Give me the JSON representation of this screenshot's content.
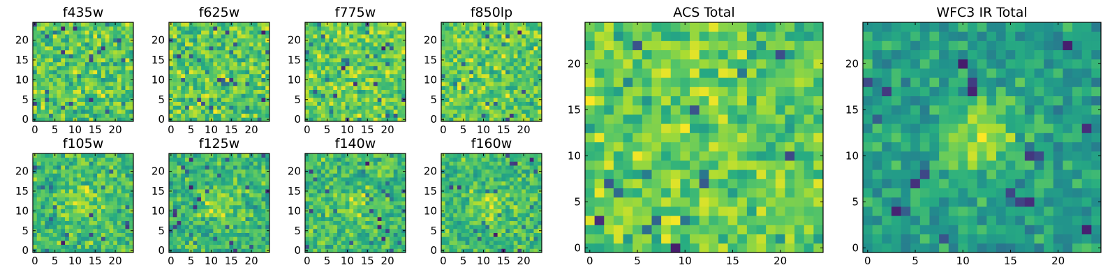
{
  "figure": {
    "title": "",
    "colormap": "viridis",
    "colors": {
      "background": "#ffffff",
      "axis": "#000000"
    }
  },
  "chart_data": [
    {
      "id": "f435w",
      "type": "heatmap",
      "title": "f435w",
      "grid_size": 25,
      "xlim": [
        0,
        24
      ],
      "ylim": [
        0,
        24
      ],
      "xticks": [
        0,
        5,
        10,
        15,
        20
      ],
      "yticks": [
        0,
        5,
        10,
        15,
        20
      ],
      "xlabel": "",
      "ylabel": "",
      "central_source_strength": 0.0,
      "noise_seed": 11
    },
    {
      "id": "f625w",
      "type": "heatmap",
      "title": "f625w",
      "grid_size": 25,
      "xlim": [
        0,
        24
      ],
      "ylim": [
        0,
        24
      ],
      "xticks": [
        0,
        5,
        10,
        15,
        20
      ],
      "yticks": [
        0,
        5,
        10,
        15,
        20
      ],
      "xlabel": "",
      "ylabel": "",
      "central_source_strength": 0.0,
      "noise_seed": 23
    },
    {
      "id": "f775w",
      "type": "heatmap",
      "title": "f775w",
      "grid_size": 25,
      "xlim": [
        0,
        24
      ],
      "ylim": [
        0,
        24
      ],
      "xticks": [
        0,
        5,
        10,
        15,
        20
      ],
      "yticks": [
        0,
        5,
        10,
        15,
        20
      ],
      "xlabel": "",
      "ylabel": "",
      "central_source_strength": 0.0,
      "noise_seed": 37
    },
    {
      "id": "f850lp",
      "type": "heatmap",
      "title": "f850lp",
      "grid_size": 25,
      "xlim": [
        0,
        24
      ],
      "ylim": [
        0,
        24
      ],
      "xticks": [
        0,
        5,
        10,
        15,
        20
      ],
      "yticks": [
        0,
        5,
        10,
        15,
        20
      ],
      "xlabel": "",
      "ylabel": "",
      "central_source_strength": 0.0,
      "noise_seed": 41
    },
    {
      "id": "f105w",
      "type": "heatmap",
      "title": "f105w",
      "grid_size": 25,
      "xlim": [
        0,
        24
      ],
      "ylim": [
        0,
        24
      ],
      "xticks": [
        0,
        5,
        10,
        15,
        20
      ],
      "yticks": [
        0,
        5,
        10,
        15,
        20
      ],
      "xlabel": "",
      "ylabel": "",
      "central_source_strength": 0.35,
      "noise_seed": 53
    },
    {
      "id": "f125w",
      "type": "heatmap",
      "title": "f125w",
      "grid_size": 25,
      "xlim": [
        0,
        24
      ],
      "ylim": [
        0,
        24
      ],
      "xticks": [
        0,
        5,
        10,
        15,
        20
      ],
      "yticks": [
        0,
        5,
        10,
        15,
        20
      ],
      "xlabel": "",
      "ylabel": "",
      "central_source_strength": 0.45,
      "noise_seed": 67
    },
    {
      "id": "f140w",
      "type": "heatmap",
      "title": "f140w",
      "grid_size": 25,
      "xlim": [
        0,
        24
      ],
      "ylim": [
        0,
        24
      ],
      "xticks": [
        0,
        5,
        10,
        15,
        20
      ],
      "yticks": [
        0,
        5,
        10,
        15,
        20
      ],
      "xlabel": "",
      "ylabel": "",
      "central_source_strength": 0.3,
      "noise_seed": 71
    },
    {
      "id": "f160w",
      "type": "heatmap",
      "title": "f160w",
      "grid_size": 25,
      "xlim": [
        0,
        24
      ],
      "ylim": [
        0,
        24
      ],
      "xticks": [
        0,
        5,
        10,
        15,
        20
      ],
      "yticks": [
        0,
        5,
        10,
        15,
        20
      ],
      "xlabel": "",
      "ylabel": "",
      "central_source_strength": 0.35,
      "noise_seed": 83
    },
    {
      "id": "acs-total",
      "type": "heatmap",
      "title": "ACS Total",
      "grid_size": 25,
      "xlim": [
        0,
        24
      ],
      "ylim": [
        0,
        24
      ],
      "xticks": [
        0,
        5,
        10,
        15,
        20
      ],
      "yticks": [
        0,
        5,
        10,
        15,
        20
      ],
      "xlabel": "",
      "ylabel": "",
      "central_source_strength": 0.0,
      "noise_seed": 97
    },
    {
      "id": "wfc3-ir-total",
      "type": "heatmap",
      "title": "WFC3 IR Total",
      "grid_size": 25,
      "xlim": [
        0,
        24
      ],
      "ylim": [
        0,
        24
      ],
      "xticks": [
        0,
        5,
        10,
        15,
        20
      ],
      "yticks": [
        0,
        5,
        10,
        15,
        20
      ],
      "xlabel": "",
      "ylabel": "",
      "central_source_strength": 0.75,
      "noise_seed": 101
    }
  ]
}
